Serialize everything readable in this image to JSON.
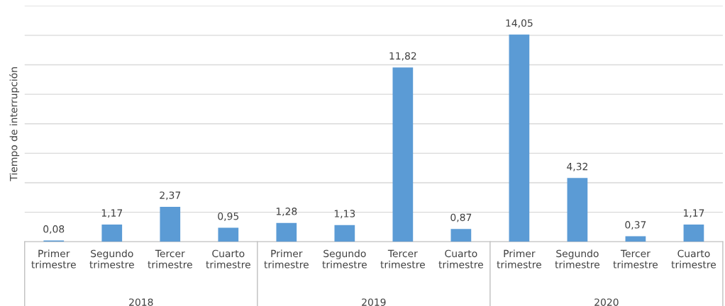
{
  "chart_data": {
    "type": "bar",
    "ylabel": "Tiempo de interrupción",
    "categories": [
      "Primer trimestre",
      "Segundo trimestre",
      "Tercer trimestre",
      "Cuarto trimestre",
      "Primer trimestre",
      "Segundo trimestre",
      "Tercer trimestre",
      "Cuarto trimestre",
      "Primer trimestre",
      "Segundo trimestre",
      "Tercer trimestre",
      "Cuarto trimestre"
    ],
    "values": [
      0.08,
      1.17,
      2.37,
      0.95,
      1.28,
      1.13,
      11.82,
      0.87,
      14.05,
      4.32,
      0.37,
      1.17
    ],
    "value_labels": [
      "0,08",
      "1,17",
      "2,37",
      "0,95",
      "1,28",
      "1,13",
      "11,82",
      "0,87",
      "14,05",
      "4,32",
      "0,37",
      "1,17"
    ],
    "color": "#5b9bd5",
    "annotations": [
      "2018",
      "2019",
      "2020"
    ],
    "ylim": [
      0,
      16
    ],
    "yticks": [
      {
        "value": 0,
        "label": null
      },
      {
        "value": 2,
        "label": null
      },
      {
        "value": 4,
        "label": null
      },
      {
        "value": 6,
        "label": null
      },
      {
        "value": 8,
        "label": null
      },
      {
        "value": 10,
        "label": null
      },
      {
        "value": 12,
        "label": null
      },
      {
        "value": 14,
        "label": null
      },
      {
        "value": 16,
        "label": null
      }
    ],
    "grid": "y",
    "tick_labels": "x"
  }
}
